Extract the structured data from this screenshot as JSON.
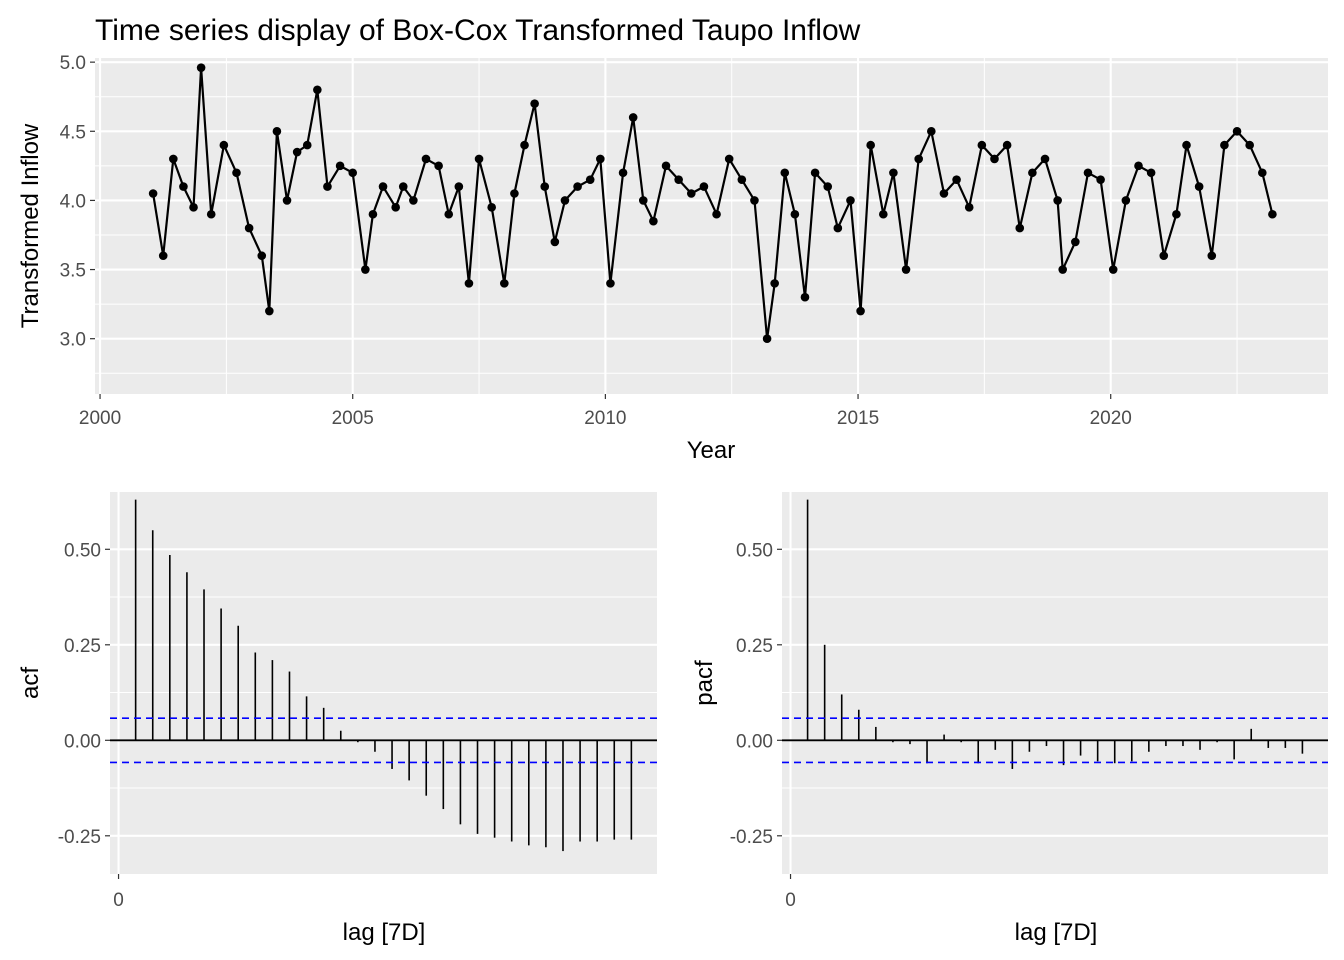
{
  "chart_data": [
    {
      "type": "line",
      "title": "Time series display of Box-Cox Transformed Taupo Inflow",
      "xlabel": "Year",
      "ylabel": "Transformed Inflow",
      "x_ticks": [
        "2000",
        "2005",
        "2010",
        "2015",
        "2020"
      ],
      "y_ticks": [
        "3.0",
        "3.5",
        "4.0",
        "4.5",
        "5.0"
      ],
      "xlim": [
        1999.9,
        2024.3
      ],
      "ylim": [
        2.6,
        5.03
      ],
      "grid": true,
      "markers": true,
      "color": "#000000",
      "series": [
        {
          "x": [
            2001.05,
            2001.25,
            2001.45,
            2001.65,
            2001.85,
            2002.0,
            2002.2,
            2002.45,
            2002.7,
            2002.95,
            2003.2,
            2003.35,
            2003.5,
            2003.7,
            2003.9,
            2004.1,
            2004.3,
            2004.5,
            2004.75,
            2005.0,
            2005.25,
            2005.4,
            2005.6,
            2005.85,
            2006.0,
            2006.2,
            2006.45,
            2006.7,
            2006.9,
            2007.1,
            2007.3,
            2007.5,
            2007.75,
            2008.0,
            2008.2,
            2008.4,
            2008.6,
            2008.8,
            2009.0,
            2009.2,
            2009.45,
            2009.7,
            2009.9,
            2010.1,
            2010.35,
            2010.55,
            2010.75,
            2010.95,
            2011.2,
            2011.45,
            2011.7,
            2011.95,
            2012.2,
            2012.45,
            2012.7,
            2012.95,
            2013.2,
            2013.35,
            2013.55,
            2013.75,
            2013.95,
            2014.15,
            2014.4,
            2014.6,
            2014.85,
            2015.05,
            2015.25,
            2015.5,
            2015.7,
            2015.95,
            2016.2,
            2016.45,
            2016.7,
            2016.95,
            2017.2,
            2017.45,
            2017.7,
            2017.95,
            2018.2,
            2018.45,
            2018.7,
            2018.95,
            2019.05,
            2019.3,
            2019.55,
            2019.8,
            2020.05,
            2020.3,
            2020.55,
            2020.8,
            2021.05,
            2021.3,
            2021.5,
            2021.75,
            2022.0,
            2022.25,
            2022.5,
            2022.75,
            2023.0,
            2023.2
          ],
          "y": [
            4.05,
            3.6,
            4.3,
            4.1,
            3.95,
            4.96,
            3.9,
            4.4,
            4.2,
            3.8,
            3.6,
            3.2,
            4.5,
            4.0,
            4.35,
            4.4,
            4.8,
            4.1,
            4.25,
            4.2,
            3.5,
            3.9,
            4.1,
            3.95,
            4.1,
            4.0,
            4.3,
            4.25,
            3.9,
            4.1,
            3.4,
            4.3,
            3.95,
            3.4,
            4.05,
            4.4,
            4.7,
            4.1,
            3.7,
            4.0,
            4.1,
            4.15,
            4.3,
            3.4,
            4.2,
            4.6,
            4.0,
            3.85,
            4.25,
            4.15,
            4.05,
            4.1,
            3.9,
            4.3,
            4.15,
            4.0,
            3.0,
            3.4,
            4.2,
            3.9,
            3.3,
            4.2,
            4.1,
            3.8,
            4.0,
            3.2,
            4.4,
            3.9,
            4.2,
            3.5,
            4.3,
            4.5,
            4.05,
            4.15,
            3.95,
            4.4,
            4.3,
            4.4,
            3.8,
            4.2,
            4.3,
            4.0,
            3.5,
            3.7,
            4.2,
            4.15,
            3.5,
            4.0,
            4.25,
            4.2,
            3.6,
            3.9,
            4.4,
            4.1,
            3.6,
            4.4,
            4.5,
            4.4,
            4.2,
            3.9
          ]
        }
      ]
    },
    {
      "type": "bar",
      "title": "",
      "xlabel": "lag [7D]",
      "ylabel": "acf",
      "x_ticks": [
        "0"
      ],
      "y_ticks": [
        "-0.25",
        "0.00",
        "0.25",
        "0.50"
      ],
      "xlim": [
        -0.5,
        31.5
      ],
      "ylim": [
        -0.35,
        0.65
      ],
      "confidence_bound": 0.058,
      "bound_color": "#0000ff",
      "lags": [
        1,
        2,
        3,
        4,
        5,
        6,
        7,
        8,
        9,
        10,
        11,
        12,
        13,
        14,
        15,
        16,
        17,
        18,
        19,
        20,
        21,
        22,
        23,
        24,
        25,
        26,
        27,
        28,
        29,
        30
      ],
      "values": [
        0.63,
        0.55,
        0.485,
        0.44,
        0.395,
        0.345,
        0.3,
        0.23,
        0.21,
        0.18,
        0.115,
        0.085,
        0.025,
        -0.005,
        -0.03,
        -0.075,
        -0.105,
        -0.145,
        -0.18,
        -0.22,
        -0.245,
        -0.255,
        -0.265,
        -0.275,
        -0.28,
        -0.29,
        -0.265,
        -0.265,
        -0.26,
        -0.26
      ]
    },
    {
      "type": "bar",
      "title": "",
      "xlabel": "lag [7D]",
      "ylabel": "pacf",
      "x_ticks": [
        "0"
      ],
      "y_ticks": [
        "-0.25",
        "0.00",
        "0.25",
        "0.50"
      ],
      "xlim": [
        -0.5,
        31.5
      ],
      "ylim": [
        -0.35,
        0.65
      ],
      "confidence_bound": 0.058,
      "bound_color": "#0000ff",
      "lags": [
        1,
        2,
        3,
        4,
        5,
        6,
        7,
        8,
        9,
        10,
        11,
        12,
        13,
        14,
        15,
        16,
        17,
        18,
        19,
        20,
        21,
        22,
        23,
        24,
        25,
        26,
        27,
        28,
        29,
        30
      ],
      "values": [
        0.63,
        0.25,
        0.12,
        0.08,
        0.035,
        -0.005,
        -0.01,
        -0.06,
        0.015,
        -0.005,
        -0.06,
        -0.025,
        -0.075,
        -0.03,
        -0.015,
        -0.065,
        -0.04,
        -0.055,
        -0.06,
        -0.055,
        -0.03,
        -0.015,
        -0.015,
        -0.025,
        -0.005,
        -0.05,
        0.03,
        -0.02,
        -0.02,
        -0.035
      ]
    }
  ]
}
